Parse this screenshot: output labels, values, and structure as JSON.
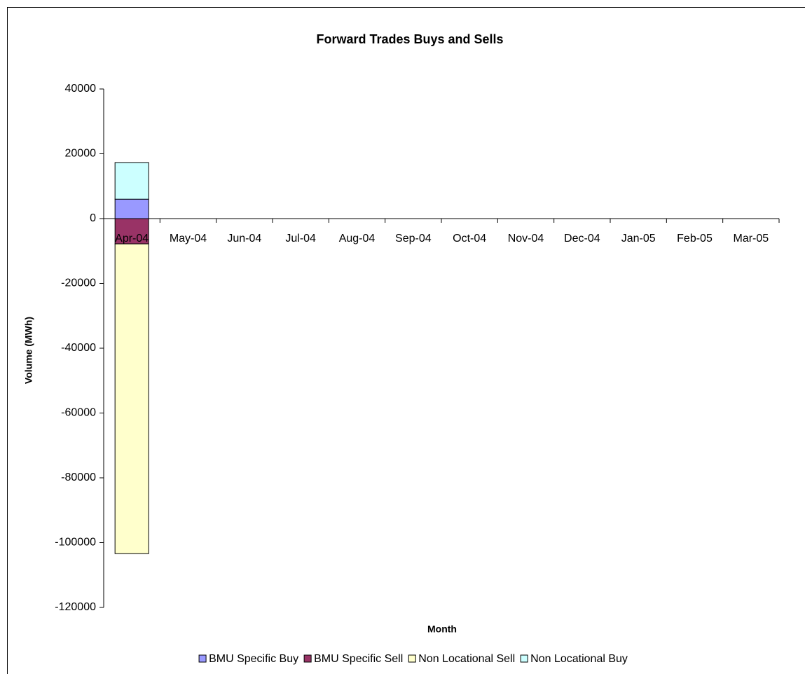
{
  "chart_data": {
    "type": "bar",
    "stacked": true,
    "title": "Forward Trades Buys and Sells",
    "x_label": "Month",
    "y_label": "Volume (MWh)",
    "categories": [
      "Apr-04",
      "May-04",
      "Jun-04",
      "Jul-04",
      "Aug-04",
      "Sep-04",
      "Oct-04",
      "Nov-04",
      "Dec-04",
      "Jan-05",
      "Feb-05",
      "Mar-05"
    ],
    "series": [
      {
        "name": "BMU Specific Buy",
        "color": "#9999ff",
        "values": [
          6000,
          0,
          0,
          0,
          0,
          0,
          0,
          0,
          0,
          0,
          0,
          0
        ]
      },
      {
        "name": "BMU Specific Sell",
        "color": "#993366",
        "values": [
          -7800,
          0,
          0,
          0,
          0,
          0,
          0,
          0,
          0,
          0,
          0,
          0
        ]
      },
      {
        "name": "Non Locational Sell",
        "color": "#ffffcc",
        "values": [
          -95600,
          0,
          0,
          0,
          0,
          0,
          0,
          0,
          0,
          0,
          0,
          0
        ]
      },
      {
        "name": "Non Locational Buy",
        "color": "#ccffff",
        "values": [
          11300,
          0,
          0,
          0,
          0,
          0,
          0,
          0,
          0,
          0,
          0,
          0
        ]
      }
    ],
    "ylim": [
      -120000,
      40000
    ],
    "yticks": [
      -120000,
      -100000,
      -80000,
      -60000,
      -40000,
      -20000,
      0,
      20000,
      40000
    ],
    "legend": "bottom"
  }
}
